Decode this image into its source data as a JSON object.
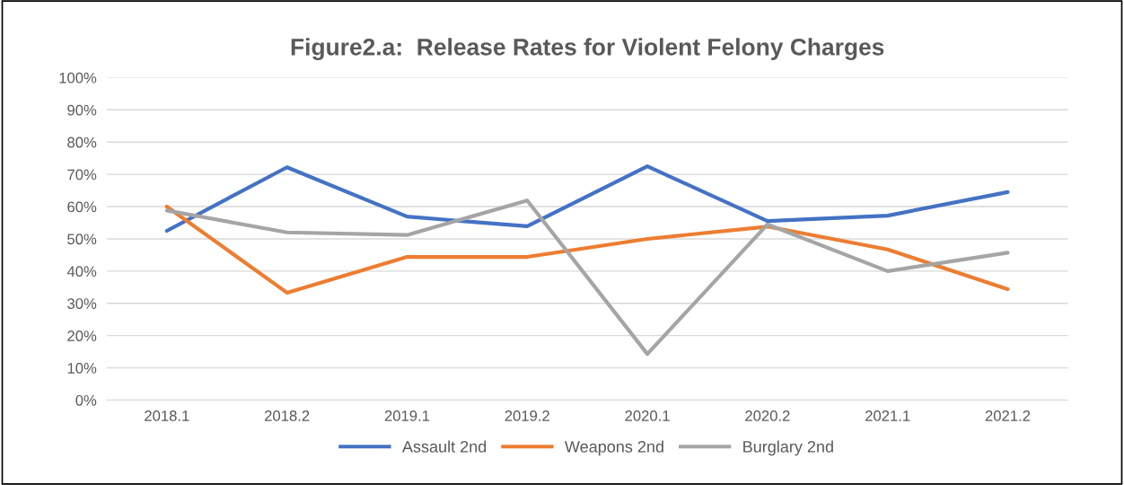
{
  "chart_data": {
    "type": "line",
    "title": "Figure2.a:  Release Rates for Violent Felony Charges",
    "categories": [
      "2018.1",
      "2018.2",
      "2019.1",
      "2019.2",
      "2020.1",
      "2020.2",
      "2021.1",
      "2021.2"
    ],
    "series": [
      {
        "name": "Assault 2nd",
        "color": "#4472c4",
        "values": [
          52.5,
          72.2,
          56.9,
          53.9,
          72.5,
          55.5,
          57.2,
          64.5
        ]
      },
      {
        "name": "Weapons 2nd",
        "color": "#ed7d31",
        "values": [
          60.0,
          33.3,
          44.4,
          44.4,
          50.0,
          53.8,
          46.7,
          34.4
        ]
      },
      {
        "name": "Burglary 2nd",
        "color": "#a5a5a5",
        "values": [
          58.8,
          52.0,
          51.2,
          61.9,
          14.3,
          54.5,
          40.0,
          45.7
        ]
      }
    ],
    "ylim": [
      0,
      100
    ],
    "yticks": [
      {
        "value": 0,
        "label": "0%"
      },
      {
        "value": 10,
        "label": "10%"
      },
      {
        "value": 20,
        "label": "20%"
      },
      {
        "value": 30,
        "label": "30%"
      },
      {
        "value": 40,
        "label": "40%"
      },
      {
        "value": 50,
        "label": "50%"
      },
      {
        "value": 60,
        "label": "60%"
      },
      {
        "value": 70,
        "label": "70%"
      },
      {
        "value": 80,
        "label": "80%"
      },
      {
        "value": 90,
        "label": "90%"
      },
      {
        "value": 100,
        "label": "100%"
      }
    ],
    "grid": "y",
    "legend": "bottom",
    "marker": "none",
    "line_style": "solid"
  }
}
